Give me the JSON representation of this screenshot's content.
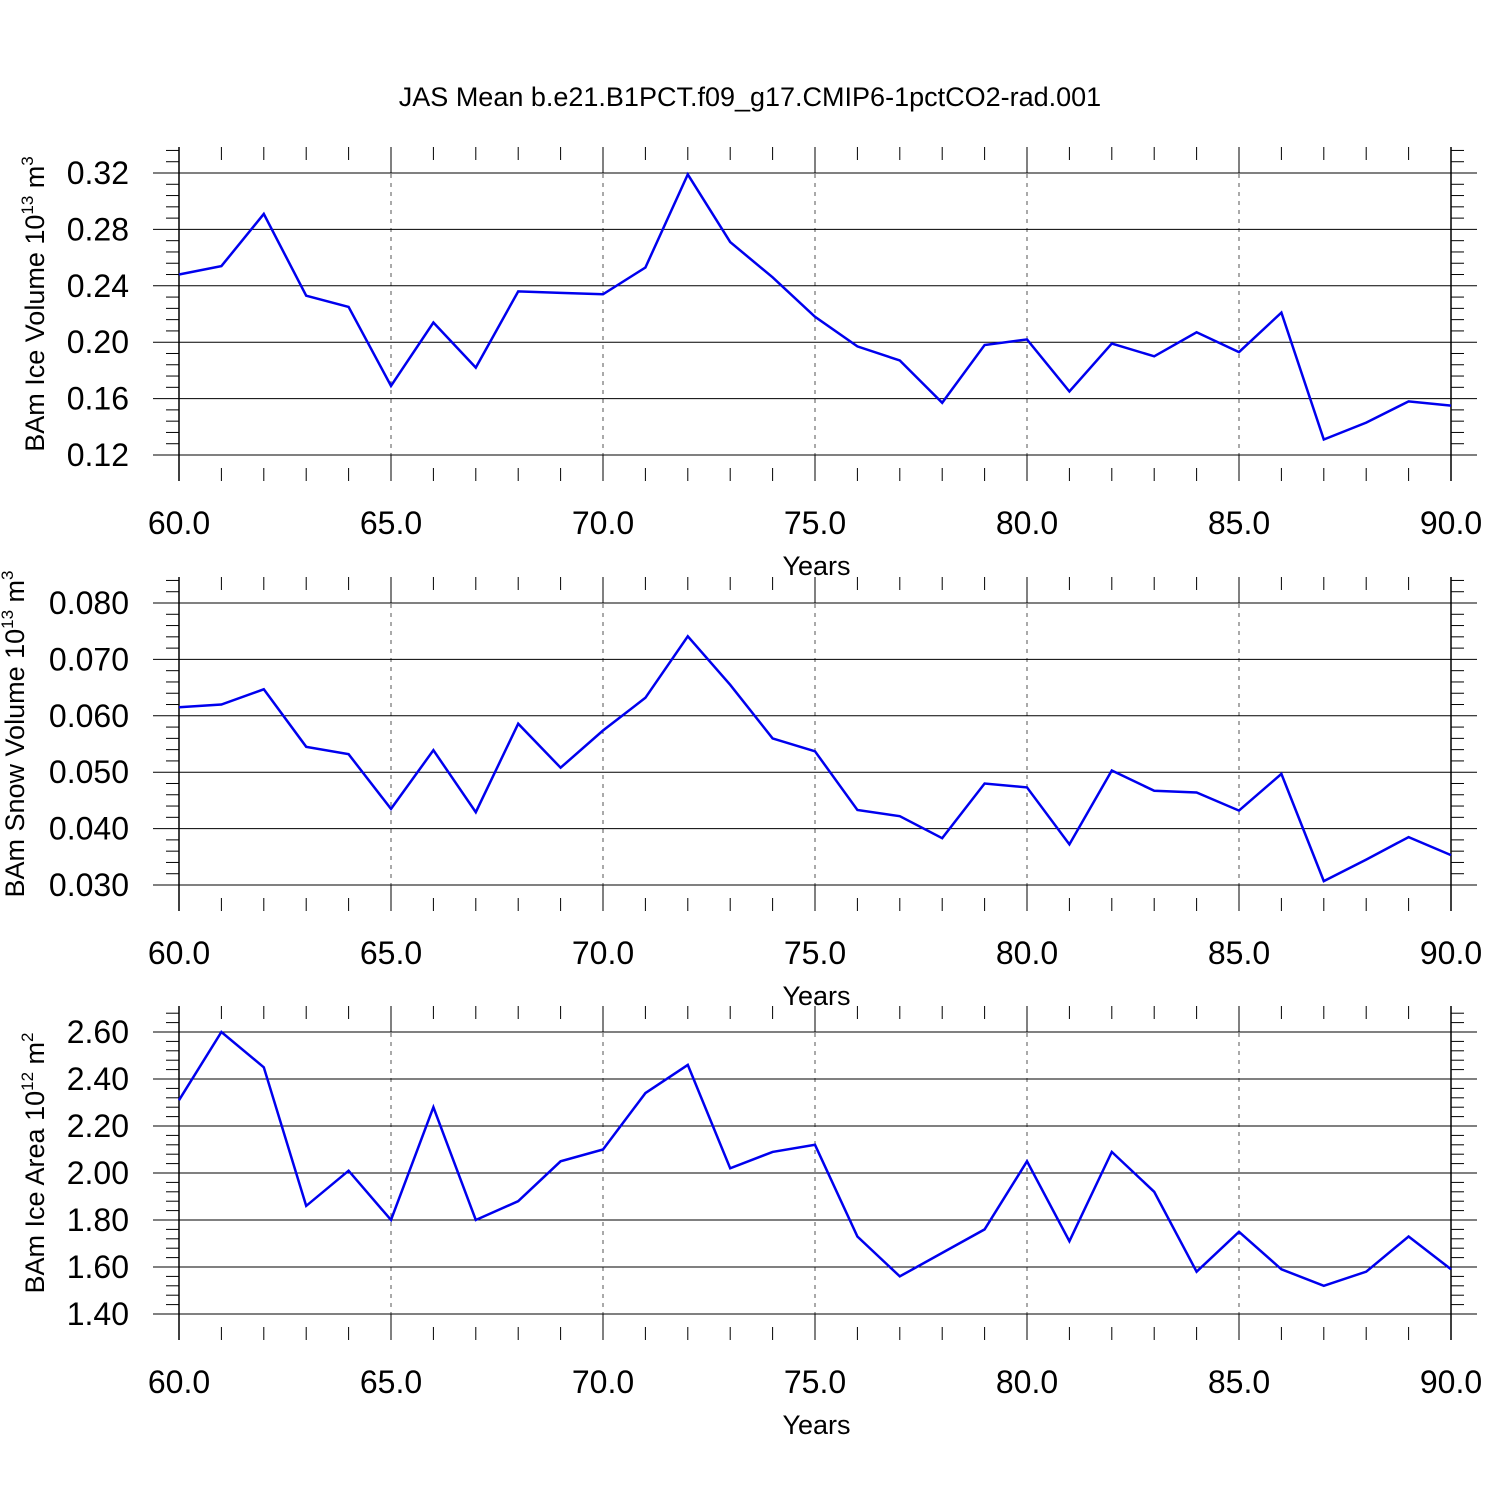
{
  "title": "JAS Mean b.e21.B1PCT.f09_g17.CMIP6-1pctCO2-rad.001",
  "colors": {
    "series": "#0000ee",
    "axes": "#000000",
    "grid": "#555555"
  },
  "chart_data": [
    {
      "type": "line",
      "xlabel": "Years",
      "ylabel": {
        "main": "BAm Ice Volume 10",
        "exp": "13",
        "unit": " m",
        "unit_exp": "3"
      },
      "xlim": [
        60,
        90
      ],
      "ylim": [
        0.12,
        0.33
      ],
      "xticks": [
        "60.0",
        "65.0",
        "70.0",
        "75.0",
        "80.0",
        "85.0",
        "90.0"
      ],
      "yticks": [
        "0.12",
        "0.16",
        "0.20",
        "0.24",
        "0.28",
        "0.32"
      ],
      "grid": "vertical dashed",
      "x": [
        60,
        61,
        62,
        63,
        64,
        65,
        66,
        67,
        68,
        69,
        70,
        71,
        72,
        73,
        74,
        75,
        76,
        77,
        78,
        79,
        80,
        81,
        82,
        83,
        84,
        85,
        86,
        87,
        88,
        89,
        90
      ],
      "series": [
        {
          "values": [
            0.248,
            0.254,
            0.291,
            0.233,
            0.225,
            0.169,
            0.214,
            0.182,
            0.236,
            0.235,
            0.234,
            0.253,
            0.319,
            0.271,
            0.246,
            0.218,
            0.197,
            0.187,
            0.157,
            0.198,
            0.202,
            0.165,
            0.199,
            0.19,
            0.207,
            0.193,
            0.221,
            0.131,
            0.143,
            0.158,
            0.155
          ]
        }
      ]
    },
    {
      "type": "line",
      "xlabel": "Years",
      "ylabel": {
        "main": "BAm Snow Volume 10",
        "exp": "13",
        "unit": " m",
        "unit_exp": "3"
      },
      "xlim": [
        60,
        90
      ],
      "ylim": [
        0.03,
        0.085
      ],
      "xticks": [
        "60.0",
        "65.0",
        "70.0",
        "75.0",
        "80.0",
        "85.0",
        "90.0"
      ],
      "yticks": [
        "0.030",
        "0.040",
        "0.050",
        "0.060",
        "0.070",
        "0.080"
      ],
      "grid": "vertical dashed",
      "x": [
        60,
        61,
        62,
        63,
        64,
        65,
        66,
        67,
        68,
        69,
        70,
        71,
        72,
        73,
        74,
        75,
        76,
        77,
        78,
        79,
        80,
        81,
        82,
        83,
        84,
        85,
        86,
        87,
        88,
        89,
        90
      ],
      "series": [
        {
          "values": [
            0.0615,
            0.062,
            0.0647,
            0.0545,
            0.0532,
            0.0435,
            0.0539,
            0.0429,
            0.0586,
            0.0508,
            0.0574,
            0.0632,
            0.0741,
            0.0655,
            0.056,
            0.0537,
            0.0433,
            0.0422,
            0.0383,
            0.048,
            0.0473,
            0.0372,
            0.0503,
            0.0467,
            0.0464,
            0.0432,
            0.0497,
            0.0307,
            0.0345,
            0.0385,
            0.0353
          ]
        }
      ]
    },
    {
      "type": "line",
      "xlabel": "Years",
      "ylabel": {
        "main": "BAm Ice Area 10",
        "exp": "12",
        "unit": " m",
        "unit_exp": "2"
      },
      "xlim": [
        60,
        90
      ],
      "ylim": [
        1.4,
        2.7
      ],
      "xticks": [
        "60.0",
        "65.0",
        "70.0",
        "75.0",
        "80.0",
        "85.0",
        "90.0"
      ],
      "yticks": [
        "1.40",
        "1.60",
        "1.80",
        "2.00",
        "2.20",
        "2.40",
        "2.60"
      ],
      "grid": "vertical dashed",
      "x": [
        60,
        61,
        62,
        63,
        64,
        65,
        66,
        67,
        68,
        69,
        70,
        71,
        72,
        73,
        74,
        75,
        76,
        77,
        78,
        79,
        80,
        81,
        82,
        83,
        84,
        85,
        86,
        87,
        88,
        89,
        90
      ],
      "series": [
        {
          "values": [
            2.31,
            2.6,
            2.45,
            1.86,
            2.01,
            1.8,
            2.28,
            1.8,
            1.88,
            2.05,
            2.1,
            2.34,
            2.46,
            2.02,
            2.09,
            2.12,
            1.73,
            1.56,
            1.66,
            1.76,
            2.05,
            1.71,
            2.09,
            1.92,
            1.58,
            1.75,
            1.59,
            1.52,
            1.58,
            1.73,
            1.59
          ]
        }
      ]
    }
  ]
}
